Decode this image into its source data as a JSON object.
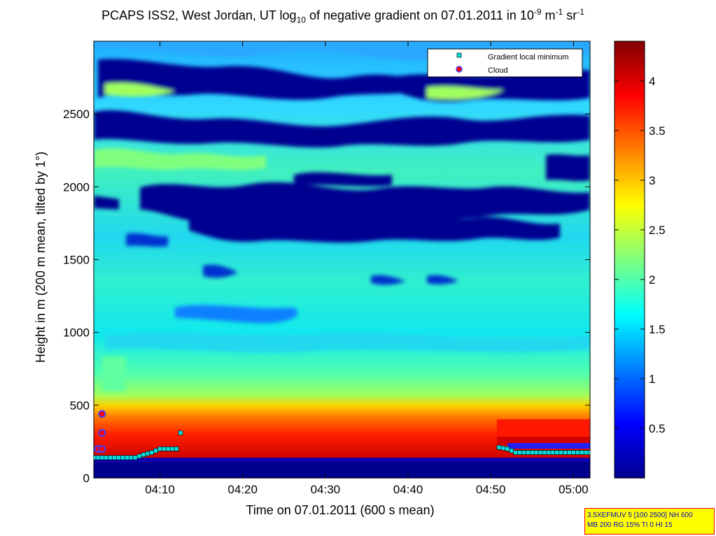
{
  "header": {
    "title_pre": "PCAPS ISS2, West Jordan, UT log",
    "title_sub": "10",
    "title_mid": " of negative gradient on 07.01.2011 in 10",
    "title_sup1": "-9",
    "title_unit1": " m",
    "title_sup2": "-1",
    "title_unit2": " sr",
    "title_sup3": "-1"
  },
  "chart_data": {
    "type": "heatmap",
    "xlabel": "Time on 07.01.2011 (600 s mean)",
    "ylabel": "Height in m (200 m mean, tilted by 1°)",
    "xlim": [
      "04:02",
      "05:02"
    ],
    "ylim": [
      0,
      3000
    ],
    "x_ticks": [
      "04:10",
      "04:20",
      "04:30",
      "04:40",
      "04:50",
      "05:00"
    ],
    "y_ticks": [
      0,
      500,
      1000,
      1500,
      2000,
      2500
    ],
    "colorbar": {
      "range": [
        0,
        4.4
      ],
      "ticks": [
        0.5,
        1,
        1.5,
        2,
        2.5,
        3,
        3.5,
        4
      ],
      "colormap": "jet"
    },
    "legend": {
      "position": "top-right",
      "entries": [
        {
          "label": "Gradient local minimum",
          "marker": "square",
          "color": "#00e0e0"
        },
        {
          "label": "Cloud",
          "marker": "circle",
          "color": "#ff0000"
        }
      ]
    },
    "series": [
      {
        "name": "Gradient local minimum",
        "points": [
          [
            "04:02",
            140
          ],
          [
            "04:03",
            140
          ],
          [
            "04:04",
            140
          ],
          [
            "04:05",
            140
          ],
          [
            "04:06",
            140
          ],
          [
            "04:07",
            140
          ],
          [
            "04:08",
            160
          ],
          [
            "04:09",
            175
          ],
          [
            "04:10",
            200
          ],
          [
            "04:11",
            200
          ],
          [
            "04:12",
            200
          ],
          [
            "04:12:30",
            310
          ],
          [
            "04:51",
            210
          ],
          [
            "04:52",
            200
          ],
          [
            "04:53",
            175
          ],
          [
            "04:54",
            175
          ],
          [
            "04:55",
            175
          ],
          [
            "04:56",
            175
          ],
          [
            "04:57",
            175
          ],
          [
            "04:58",
            175
          ],
          [
            "04:59",
            175
          ],
          [
            "05:00",
            175
          ],
          [
            "05:01",
            175
          ],
          [
            "05:02",
            175
          ]
        ]
      },
      {
        "name": "Cloud",
        "points": [
          [
            "04:02:30",
            200
          ],
          [
            "04:03",
            200
          ],
          [
            "04:03",
            310
          ],
          [
            "04:03",
            440
          ]
        ]
      }
    ]
  },
  "infobox": {
    "line1": "3.5XEFMUV 5 [100 2500] NH 600",
    "line2": "MB 200 RG 15% TI 0 HI 15"
  }
}
